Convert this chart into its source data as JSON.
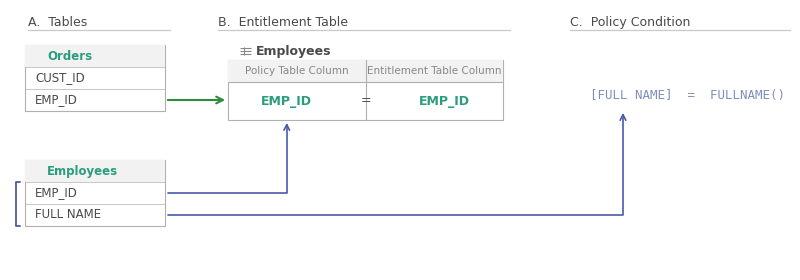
{
  "section_a_title": "A.  Tables",
  "section_b_title": "B.  Entitlement Table",
  "section_c_title": "C.  Policy Condition",
  "orders_table": {
    "title": "Orders",
    "rows": [
      "CUST_ID",
      "EMP_ID"
    ]
  },
  "employees_table_a": {
    "title": "Employees",
    "rows": [
      "EMP_ID",
      "FULL NAME"
    ]
  },
  "entitlement_label": "Employees",
  "entitlement_headers": [
    "Policy Table Column",
    "Entitlement Table Column"
  ],
  "entitlement_row": [
    "EMP_ID",
    "=",
    "EMP_ID"
  ],
  "policy_condition": "[FULL NAME]  =  FULLNAME()",
  "colors": {
    "background": "#ffffff",
    "section_title": "#4a4a4a",
    "divider": "#c8c8c8",
    "table_border": "#b0b0b0",
    "table_header_bg": "#f2f2f2",
    "table_title_color": "#2a9d7e",
    "table_row_text": "#4a4a4a",
    "entitlement_title_color": "#4a4a4a",
    "entitlement_text_teal": "#2a9d7e",
    "entitlement_header_text": "#888888",
    "arrow_green": "#2e8b3e",
    "arrow_blue": "#4a5aaa",
    "policy_text": "#8090bb",
    "bracket_blue": "#4a5aaa",
    "icon_color": "#888888"
  },
  "layout": {
    "fig_w": 8.0,
    "fig_h": 2.8,
    "dpi": 100
  }
}
